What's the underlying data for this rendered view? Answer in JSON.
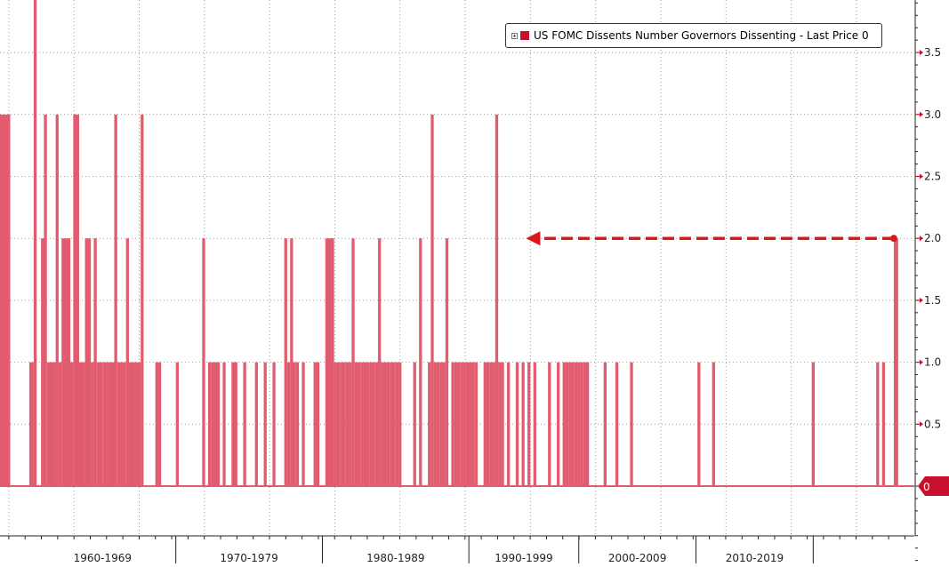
{
  "chart_data": {
    "type": "bar",
    "title": "",
    "xlabel": "",
    "ylabel": "",
    "ylim": [
      -0.75,
      3.95
    ],
    "yticks": [
      "3.5",
      "3.0",
      "2.5",
      "2.0",
      "1.5",
      "1.0",
      "0.5"
    ],
    "last_price_label": "0",
    "grid": true,
    "legend": {
      "placement": "top-right",
      "text": "US FOMC Dissents Number Governors Dissenting - Last Price 0",
      "color": "#c8102e"
    },
    "colors": {
      "bars": "#e05c6e",
      "axis_accent": "#c8102e",
      "grid": "#9a9a9a",
      "arrow": "#d7191c",
      "tag": "#c8102e"
    },
    "annotation": {
      "type": "dashed-arrow",
      "from": {
        "year": 2019.0,
        "value": 2.0
      },
      "to": {
        "year": 1993.9,
        "value": 2.0
      },
      "color": "#d7191c"
    },
    "x_range": [
      1958.0,
      2020.4
    ],
    "x_period_labels": [
      {
        "label": "1960-1969",
        "start": 1960,
        "end": 1970
      },
      {
        "label": "1970-1979",
        "start": 1970,
        "end": 1980
      },
      {
        "label": "1980-1989",
        "start": 1980,
        "end": 1990
      },
      {
        "label": "1990-1999",
        "start": 1990,
        "end": 1997.5
      },
      {
        "label": "2000-2009",
        "start": 1997.5,
        "end": 2005.5
      },
      {
        "label": "2010-2019",
        "start": 2005.5,
        "end": 2013.5
      }
    ],
    "series": [
      {
        "name": "US FOMC Dissents Number Governors Dissenting",
        "x": [
          1958.0,
          1960.0,
          1960.3,
          1960.8,
          1961.0,
          1961.2,
          1961.8,
          1962.0,
          1962.2,
          1962.6,
          1963.0,
          1963.2,
          1963.4,
          1963.8,
          1964.2,
          1964.4,
          1964.6,
          1965.0,
          1965.4,
          1965.8,
          1966.0,
          1966.6,
          1966.8,
          1967.2,
          1967.6,
          1968.6,
          1970.0,
          1971.8,
          1972.2,
          1972.4,
          1972.6,
          1973.2,
          1973.8,
          1974.6,
          1975.4,
          1976.0,
          1976.6,
          1977.4,
          1977.6,
          1977.8,
          1978.0,
          1978.2,
          1978.6,
          1979.4,
          1980.2,
          1980.8,
          1981.2,
          1981.4,
          1981.6,
          1981.8,
          1982.0,
          1982.2,
          1982.4,
          1982.6,
          1982.8,
          1983.2,
          1983.4,
          1983.6,
          1983.8,
          1984.0,
          1984.4,
          1984.6,
          1985.0,
          1985.2,
          1986.2,
          1986.6,
          1987.2,
          1987.4,
          1987.6,
          1987.8,
          1988.0,
          1988.2,
          1988.4,
          1988.8,
          1989.0,
          1989.2,
          1989.4,
          1989.6,
          1989.8,
          1990.2,
          1990.4,
          1991.0,
          1991.2,
          1991.4,
          1991.6,
          1991.8,
          1992.0,
          1992.2,
          1992.6,
          1993.2,
          1993.6,
          1994.0,
          1994.4,
          1995.4,
          1996.0,
          1996.4,
          1996.6,
          1996.8,
          1997.0,
          1997.2,
          1997.4,
          1997.6,
          1997.8,
          1998.0,
          1999.2,
          2000.0,
          2001.0,
          2005.6,
          2006.6,
          2013.4,
          2017.8,
          2018.2,
          2019.0
        ],
        "values": [
          3,
          1,
          4,
          2,
          3,
          1,
          3,
          1,
          2,
          1,
          3,
          1,
          1,
          2,
          1,
          2,
          1,
          1,
          1,
          3,
          1,
          2,
          1,
          1,
          3,
          1,
          1,
          2,
          1,
          1,
          1,
          1,
          1,
          1,
          1,
          1,
          1,
          2,
          1,
          2,
          1,
          1,
          1,
          1,
          2,
          1,
          1,
          1,
          1,
          1,
          2,
          1,
          1,
          1,
          1,
          1,
          1,
          1,
          2,
          1,
          1,
          1,
          1,
          1,
          1,
          2,
          1,
          3,
          1,
          1,
          1,
          1,
          2,
          1,
          1,
          1,
          1,
          1,
          1,
          1,
          1,
          1,
          1,
          1,
          1,
          3,
          1,
          1,
          1,
          1,
          1,
          1,
          1,
          1,
          1,
          1,
          1,
          1,
          1,
          1,
          1,
          1,
          1,
          1,
          1,
          1,
          1,
          1,
          1,
          1,
          1,
          1,
          2
        ],
        "widths": [
          0.7,
          0.3,
          0.2,
          0.3,
          0.2,
          0.6,
          0.2,
          0.2,
          0.6,
          0.4,
          0.4,
          0.2,
          0.4,
          0.4,
          0.2,
          0.2,
          0.4,
          0.4,
          0.4,
          0.2,
          0.6,
          0.2,
          0.4,
          0.4,
          0.2,
          0.4,
          0.2,
          0.2,
          0.2,
          0.2,
          0.4,
          0.2,
          0.4,
          0.2,
          0.2,
          0.2,
          0.2,
          0.2,
          0.2,
          0.2,
          0.2,
          0.2,
          0.2,
          0.4,
          0.6,
          0.4,
          0.2,
          0.2,
          0.2,
          0.2,
          0.2,
          0.2,
          0.2,
          0.2,
          0.4,
          0.2,
          0.2,
          0.2,
          0.2,
          0.4,
          0.2,
          0.4,
          0.2,
          0.2,
          0.2,
          0.2,
          0.2,
          0.2,
          0.2,
          0.2,
          0.2,
          0.2,
          0.2,
          0.2,
          0.2,
          0.2,
          0.2,
          0.2,
          0.4,
          0.2,
          0.2,
          0.2,
          0.2,
          0.2,
          0.2,
          0.2,
          0.2,
          0.2,
          0.2,
          0.2,
          0.2,
          0.2,
          0.2,
          0.2,
          0.2,
          0.2,
          0.2,
          0.2,
          0.2,
          0.2,
          0.2,
          0.2,
          0.2,
          0.2,
          0.2,
          0.2,
          0.2,
          0.2,
          0.2,
          0.2,
          0.2,
          0.2,
          0.3
        ]
      }
    ]
  }
}
